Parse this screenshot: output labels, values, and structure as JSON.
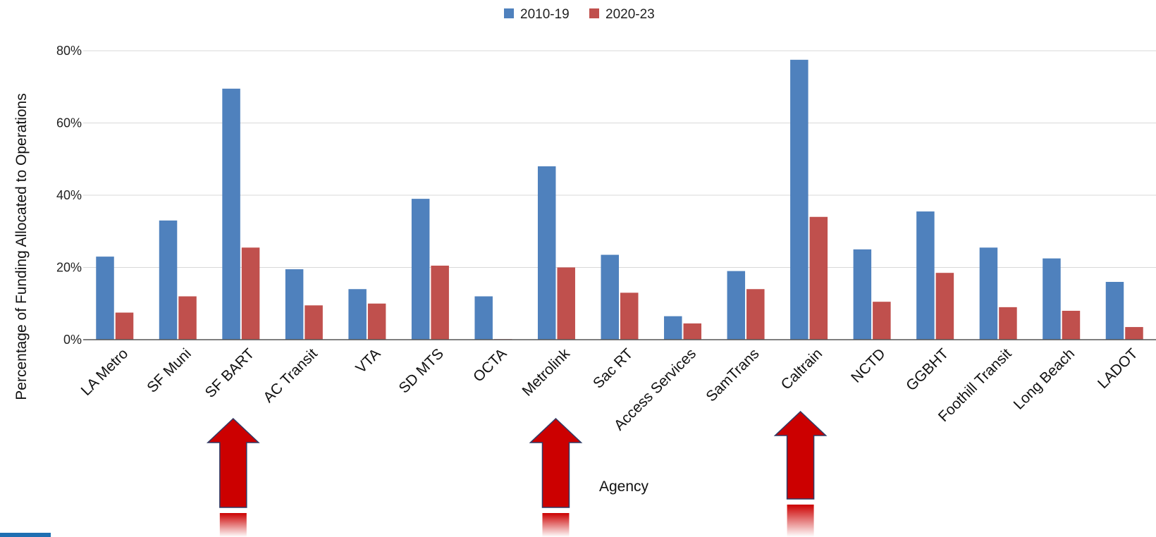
{
  "chart_data": {
    "type": "bar",
    "title": "",
    "xlabel": "Agency",
    "ylabel": "Percentage of Funding Allocated to Operations",
    "ylim": [
      0,
      80
    ],
    "yticks": [
      "0%",
      "20%",
      "40%",
      "60%",
      "80%"
    ],
    "grid": true,
    "legend_position": "top-center",
    "categories": [
      "LA Metro",
      "SF Muni",
      "SF BART",
      "AC Transit",
      "VTA",
      "SD MTS",
      "OCTA",
      "Metrolink",
      "Sac RT",
      "Access Services",
      "SamTrans",
      "Caltrain",
      "NCTD",
      "GGBHT",
      "Foothill Transit",
      "Long Beach",
      "LADOT"
    ],
    "series": [
      {
        "name": "2010-19",
        "color": "#4f81bd",
        "values": [
          23,
          33,
          69.5,
          19.5,
          14,
          39,
          12,
          48,
          23.5,
          6.5,
          19,
          77.5,
          25,
          35.5,
          25.5,
          22.5,
          16
        ]
      },
      {
        "name": "2020-23",
        "color": "#c0504d",
        "values": [
          7.5,
          12,
          25.5,
          9.5,
          10,
          20.5,
          0,
          20,
          13,
          4.5,
          14,
          34,
          10.5,
          18.5,
          9,
          8,
          3.5
        ]
      }
    ],
    "annotations": [
      {
        "shape": "red-up-arrow",
        "points_to": "SF BART"
      },
      {
        "shape": "red-up-arrow",
        "points_to": "Metrolink"
      },
      {
        "shape": "red-up-arrow",
        "points_to": "Caltrain"
      }
    ],
    "colors": {
      "arrow_fill": "#cc0000",
      "arrow_outline": "#2f3b66",
      "slide_accent": "#1f6fb2"
    }
  }
}
